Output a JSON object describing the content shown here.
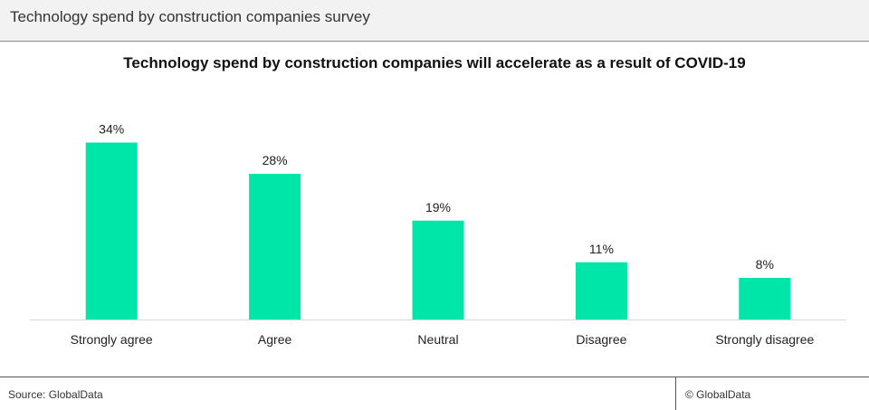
{
  "header": {
    "title": "Technology spend by construction companies survey"
  },
  "footer": {
    "source": "Source: GlobalData",
    "copyright": "© GlobalData"
  },
  "colors": {
    "bar": "#00e5a8",
    "axis": "#d9d9d9",
    "text": "#222222"
  },
  "chart_data": {
    "type": "bar",
    "title": "Technology spend by construction companies will accelerate as a result of COVID-19",
    "categories": [
      "Strongly agree",
      "Agree",
      "Neutral",
      "Disagree",
      "Strongly disagree"
    ],
    "values": [
      34,
      28,
      19,
      11,
      8
    ],
    "value_labels": [
      "34%",
      "28%",
      "19%",
      "11%",
      "8%"
    ],
    "ylim": [
      0,
      40
    ],
    "xlabel": "",
    "ylabel": "",
    "grid": false,
    "legend": "none"
  }
}
